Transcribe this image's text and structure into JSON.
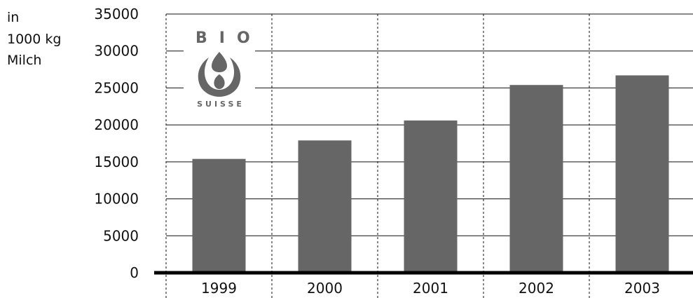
{
  "chart_data": {
    "type": "bar",
    "categories": [
      "1999",
      "2000",
      "2001",
      "2002",
      "2003"
    ],
    "values": [
      15400,
      17900,
      20600,
      25400,
      26700
    ],
    "ylim": [
      0,
      35000
    ],
    "yticks": [
      0,
      5000,
      10000,
      15000,
      20000,
      25000,
      30000,
      35000
    ],
    "ytick_labels": [
      "0",
      "5000",
      "10000",
      "15000",
      "20000",
      "25000",
      "30000",
      "35000"
    ],
    "ylabel_lines": [
      "in",
      "1000 kg",
      "Milch"
    ],
    "grid": true,
    "bar_color": "#666666"
  },
  "logo": {
    "top_text": "BIO",
    "bottom_text": "SUISSE",
    "color": "#666666"
  }
}
